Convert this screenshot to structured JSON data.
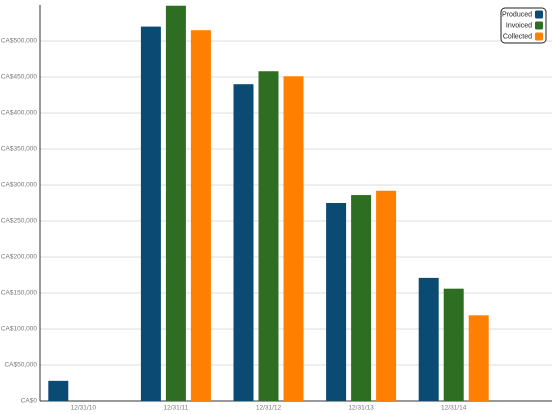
{
  "chart_data": {
    "type": "bar",
    "categories": [
      "12/31/10",
      "12/31/11",
      "12/31/12",
      "12/31/13",
      "12/31/14"
    ],
    "series": [
      {
        "name": "Produced",
        "color": "#0b4a73",
        "values": [
          28000,
          520000,
          440000,
          275000,
          171000
        ]
      },
      {
        "name": "Invoiced",
        "color": "#2e6e23",
        "values": [
          null,
          549000,
          458000,
          286000,
          156000
        ]
      },
      {
        "name": "Collected",
        "color": "#ff8000",
        "values": [
          null,
          515000,
          451000,
          292000,
          119000
        ]
      }
    ],
    "ylim": [
      0,
      550000
    ],
    "yticks": [
      {
        "value": 0,
        "label": "CA$0"
      },
      {
        "value": 50000,
        "label": "CA$50,000"
      },
      {
        "value": 100000,
        "label": "CA$100,000"
      },
      {
        "value": 150000,
        "label": "CA$150,000"
      },
      {
        "value": 200000,
        "label": "CA$200,000"
      },
      {
        "value": 250000,
        "label": "CA$250,000"
      },
      {
        "value": 300000,
        "label": "CA$300,000"
      },
      {
        "value": 350000,
        "label": "CA$350,000"
      },
      {
        "value": 400000,
        "label": "CA$400,000"
      },
      {
        "value": 450000,
        "label": "CA$450,000"
      },
      {
        "value": 500000,
        "label": "CA$500,000"
      }
    ],
    "grid": true,
    "legend": "top-right"
  }
}
